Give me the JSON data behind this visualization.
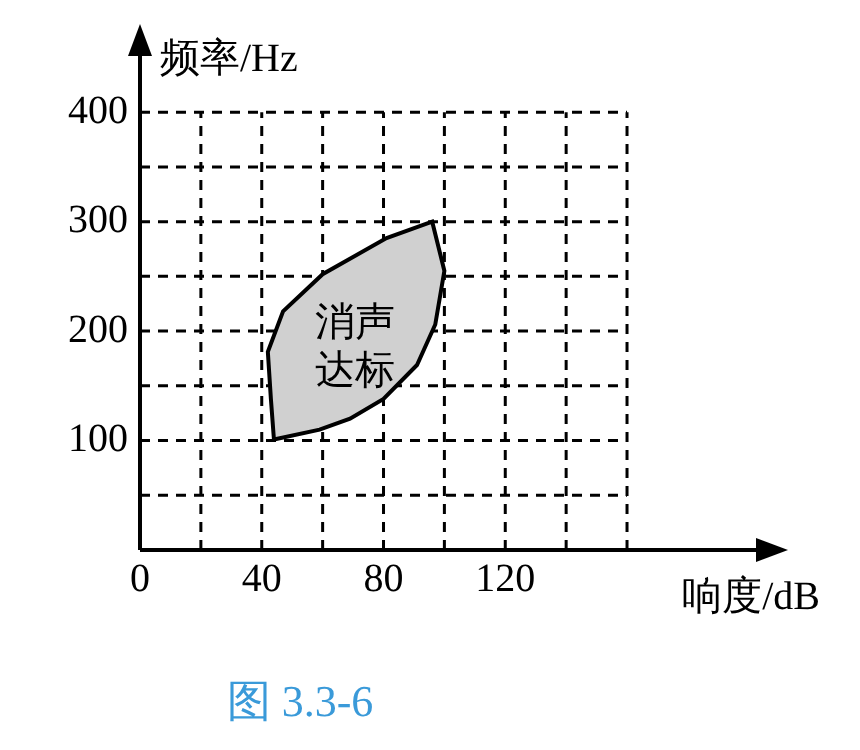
{
  "chart_data": {
    "type": "area",
    "xlabel": "响度/dB",
    "ylabel": "频率/Hz",
    "annotations": [
      "消声达标",
      "图 3.3-6"
    ],
    "series": [
      {
        "color": "#d0d0d0",
        "x": [
          44,
          59,
          69,
          80,
          91,
          97,
          100,
          96,
          81,
          60,
          47,
          42,
          43,
          44
        ],
        "values": [
          101,
          110,
          120,
          138,
          169,
          206,
          255,
          300,
          285,
          252,
          218,
          181,
          138,
          101
        ]
      }
    ],
    "xlim": [
      0,
      205
    ],
    "ylim": [
      0,
      455
    ],
    "xticks": [
      0,
      {
        "value": 20,
        "label": null
      },
      40,
      {
        "value": 60,
        "label": null
      },
      80,
      {
        "value": 100,
        "label": null
      },
      120,
      {
        "value": 140,
        "label": null
      },
      {
        "value": 160,
        "label": null
      }
    ],
    "yticks": [
      {
        "value": 0,
        "label": null
      },
      {
        "value": 50,
        "label": null
      },
      100,
      {
        "value": 150,
        "label": null
      },
      200,
      {
        "value": 250,
        "label": null
      },
      300,
      {
        "value": 350,
        "label": null
      },
      400
    ],
    "grid": true,
    "legend": false
  }
}
